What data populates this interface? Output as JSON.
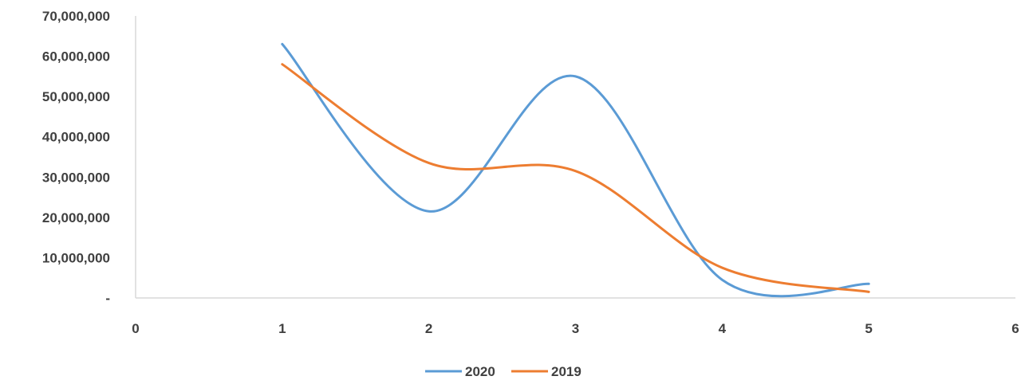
{
  "chart_data": {
    "type": "line",
    "smooth": true,
    "x": [
      1,
      2,
      3,
      4,
      5
    ],
    "series": [
      {
        "name": "2020",
        "values": [
          63000000,
          21500000,
          55000000,
          4500000,
          3500000
        ],
        "color": "#5b9bd5"
      },
      {
        "name": "2019",
        "values": [
          58000000,
          33500000,
          31500000,
          7500000,
          1500000
        ],
        "color": "#ed7d31"
      }
    ],
    "xlim": [
      0,
      6
    ],
    "ylim": [
      0,
      70000000
    ],
    "x_ticks": [
      0,
      1,
      2,
      3,
      4,
      5,
      6
    ],
    "y_ticks": [
      0,
      10000000,
      20000000,
      30000000,
      40000000,
      50000000,
      60000000,
      70000000
    ],
    "y_tick_labels": [
      "-",
      "10,000,000",
      "20,000,000",
      "30,000,000",
      "40,000,000",
      "50,000,000",
      "60,000,000",
      "70,000,000"
    ],
    "grid": false,
    "legend_position": "bottom",
    "axis_color": "#d9d9d9",
    "text_color": "#404040"
  }
}
